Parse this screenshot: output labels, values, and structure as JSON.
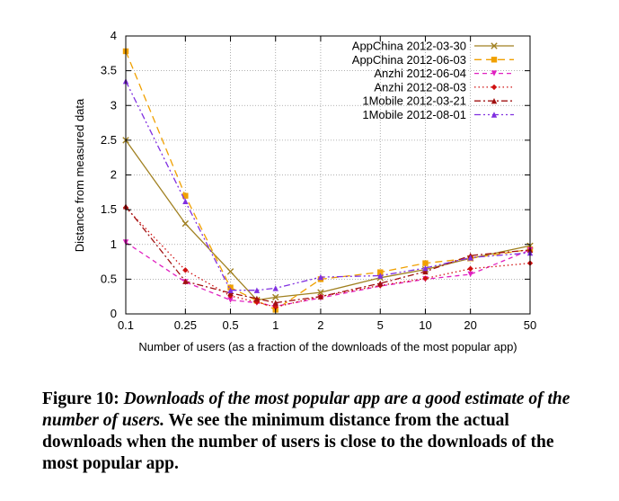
{
  "chart_data": {
    "type": "line",
    "xlabel": "Number of users (as a fraction of the downloads of the most popular app)",
    "ylabel": "Distance from measured data",
    "x_ticks": [
      "0.1",
      "0.25",
      "0.5",
      "1",
      "2",
      "5",
      "10",
      "20",
      "50"
    ],
    "y_ticks": [
      "0",
      "0.5",
      "1",
      "1.5",
      "2",
      "2.5",
      "3",
      "3.5",
      "4"
    ],
    "x_scale": "log",
    "xlim": [
      0.1,
      50
    ],
    "ylim": [
      0,
      4
    ],
    "grid": true,
    "legend_position": "top-right",
    "series": [
      {
        "name": "AppChina 2012-03-30",
        "color": "#a08020",
        "dash": "solid",
        "marker": "cross",
        "x": [
          0.1,
          0.25,
          0.5,
          0.75,
          1,
          2,
          5,
          10,
          20,
          50
        ],
        "y": [
          2.5,
          1.3,
          0.61,
          0.2,
          0.24,
          0.31,
          0.52,
          0.64,
          0.8,
          0.98
        ]
      },
      {
        "name": "AppChina 2012-06-03",
        "color": "#f0a000",
        "dash": "longdash",
        "marker": "square",
        "x": [
          0.1,
          0.25,
          0.5,
          0.75,
          1,
          2,
          5,
          10,
          20,
          50
        ],
        "y": [
          3.78,
          1.7,
          0.38,
          0.19,
          0.06,
          0.5,
          0.6,
          0.73,
          0.8,
          0.93
        ]
      },
      {
        "name": "Anzhi 2012-06-04",
        "color": "#e020c0",
        "dash": "dash",
        "marker": "triangle-down",
        "x": [
          0.1,
          0.25,
          0.5,
          0.75,
          1,
          2,
          5,
          10,
          20,
          50
        ],
        "y": [
          1.03,
          0.46,
          0.2,
          0.16,
          0.11,
          0.23,
          0.4,
          0.5,
          0.57,
          0.92
        ]
      },
      {
        "name": "Anzhi 2012-08-03",
        "color": "#d01010",
        "dash": "dot",
        "marker": "diamond",
        "x": [
          0.1,
          0.25,
          0.5,
          0.75,
          1,
          2,
          5,
          10,
          20,
          50
        ],
        "y": [
          1.53,
          0.63,
          0.26,
          0.17,
          0.1,
          0.25,
          0.41,
          0.51,
          0.65,
          0.73
        ]
      },
      {
        "name": "1Mobile 2012-03-21",
        "color": "#a01010",
        "dash": "dashdot",
        "marker": "triangle-up",
        "x": [
          0.1,
          0.25,
          0.5,
          0.75,
          1,
          2,
          5,
          10,
          20,
          50
        ],
        "y": [
          1.55,
          0.47,
          0.3,
          0.22,
          0.16,
          0.25,
          0.44,
          0.61,
          0.84,
          0.92
        ]
      },
      {
        "name": "1Mobile 2012-08-01",
        "color": "#8030e0",
        "dash": "dashdotdot",
        "marker": "triangle-up",
        "x": [
          0.1,
          0.25,
          0.5,
          0.75,
          1,
          2,
          5,
          10,
          20,
          50
        ],
        "y": [
          3.35,
          1.62,
          0.34,
          0.34,
          0.37,
          0.53,
          0.55,
          0.66,
          0.81,
          0.88
        ]
      }
    ]
  },
  "caption": {
    "label": "Figure 10:",
    "emphasis": "Downloads of the most popular app are a good estimate of the number of users.",
    "text": "We see the minimum distance from the actual downloads when the number of users is close to the downloads of the most popular app."
  }
}
